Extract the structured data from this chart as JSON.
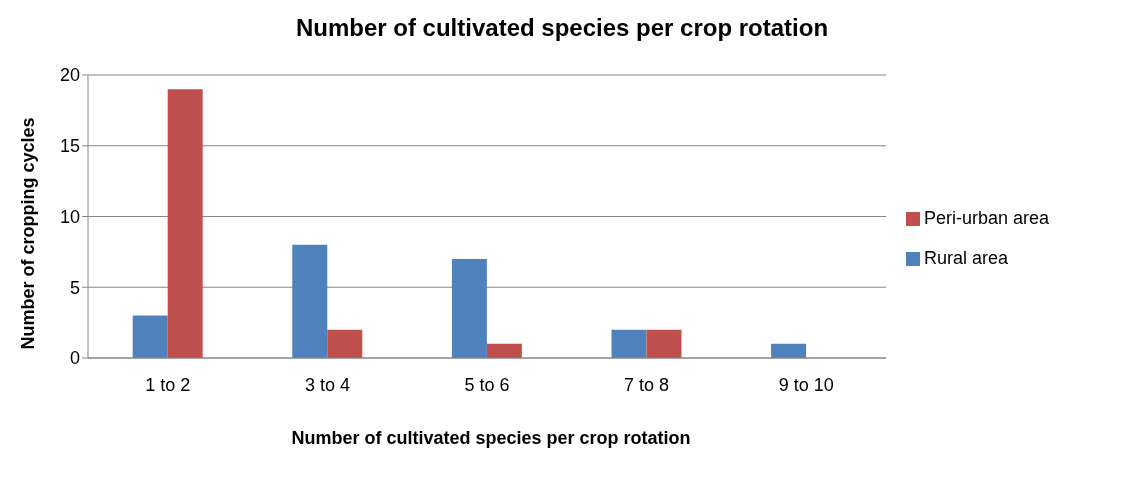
{
  "chart_data": {
    "type": "bar",
    "title": "Number of cultivated species per crop rotation",
    "xlabel": "Number of cultivated species per crop rotation",
    "ylabel": "Number of cropping cycles",
    "categories": [
      "1 to 2",
      "3 to 4",
      "5 to 6",
      "7 to 8",
      "9 to 10"
    ],
    "series": [
      {
        "name": "Rural area",
        "color": "#4f81bd",
        "values": [
          3,
          8,
          7,
          2,
          1
        ]
      },
      {
        "name": "Peri-urban area",
        "color": "#c0504d",
        "values": [
          19,
          2,
          1,
          2,
          0
        ]
      }
    ],
    "ylim": [
      0,
      20
    ],
    "yticks": [
      0,
      5,
      10,
      15,
      20
    ],
    "grid": "y",
    "legend": "right"
  }
}
